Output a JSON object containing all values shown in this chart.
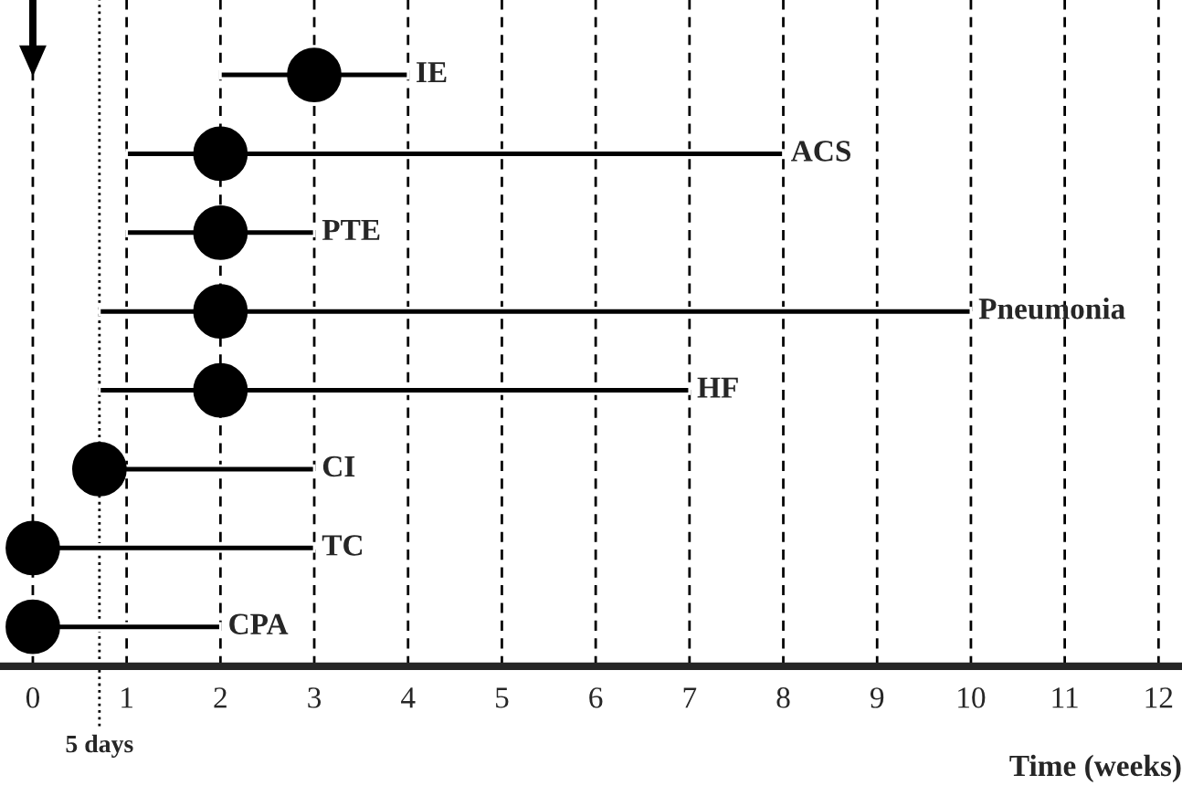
{
  "chart_data": {
    "type": "bar",
    "orientation": "horizontal",
    "xlabel": "Time (weeks)",
    "categories": [
      "IE",
      "ACS",
      "PTE",
      "Pneumonia",
      "HF",
      "CI",
      "TC",
      "CPA"
    ],
    "series": [
      {
        "color": "#000000",
        "base": [
          2,
          1,
          1,
          0.71,
          0.71,
          0.71,
          0,
          0
        ],
        "values": [
          2,
          7,
          2,
          9.29,
          6.29,
          2.29,
          3,
          2
        ]
      },
      {
        "type": "scatter",
        "color": "#000000",
        "values": [
          3,
          2,
          2,
          2,
          2,
          0.71,
          0,
          0
        ]
      }
    ],
    "xlim": [
      -0.35,
      12.25
    ],
    "xticks": [
      0,
      1,
      2,
      3,
      4,
      5,
      6,
      7,
      8,
      9,
      10,
      11,
      12
    ],
    "grid": "x",
    "tick_labels": "x",
    "marker": "circle",
    "ref_lines": [
      {
        "axis": "x",
        "value": 0.71,
        "label": "5 days",
        "line_style": "dotted",
        "color": "#000000"
      }
    ]
  }
}
